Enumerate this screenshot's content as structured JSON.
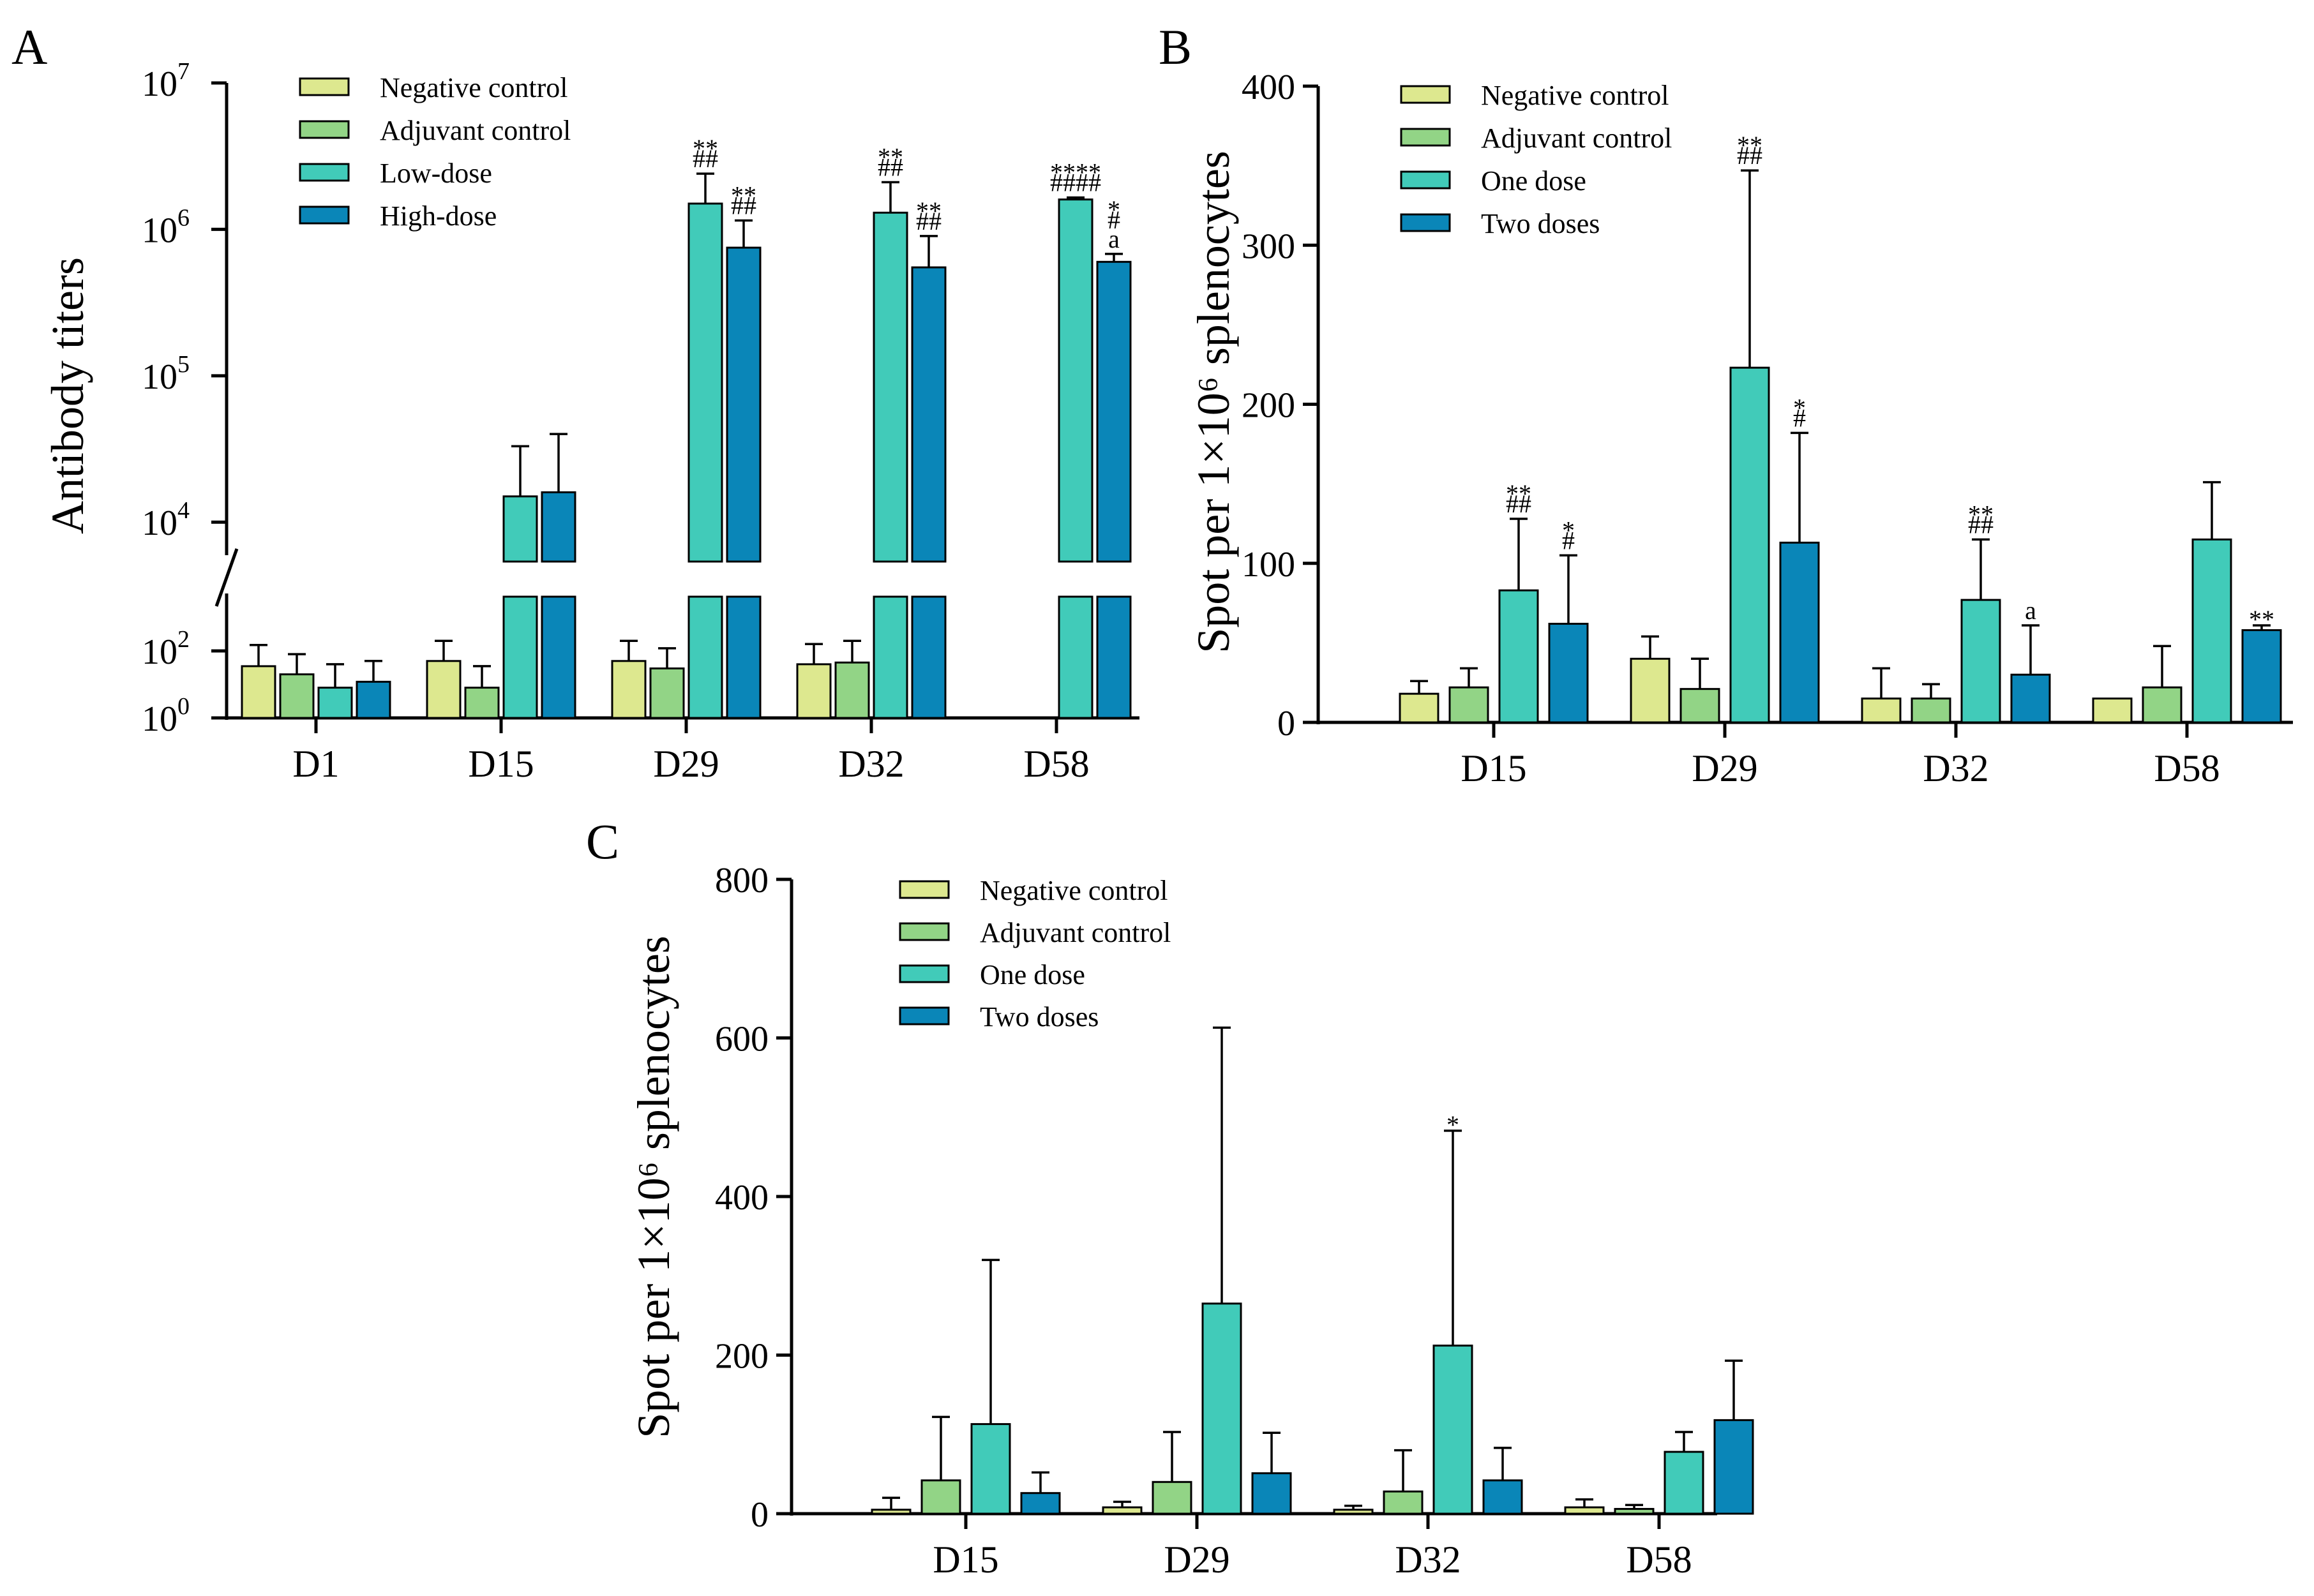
{
  "colors": {
    "negative": "#dde88f",
    "adjuvant": "#92d486",
    "low_one": "#41cbb9",
    "high_two": "#0a86b8"
  },
  "chart_data": [
    {
      "panel": "A",
      "type": "bar",
      "ylabel": "Antibody titers",
      "yscale": "log10, broken axis",
      "yticks": [
        {
          "base": "10",
          "exp": "0"
        },
        {
          "base": "10",
          "exp": "2"
        },
        {
          "base": "10",
          "exp": "4"
        },
        {
          "base": "10",
          "exp": "5"
        },
        {
          "base": "10",
          "exp": "6"
        },
        {
          "base": "10",
          "exp": "7"
        }
      ],
      "ylim": [
        1,
        10000000
      ],
      "categories": [
        "D1",
        "D15",
        "D29",
        "D32",
        "D58"
      ],
      "legend_position": "top-left",
      "series": [
        {
          "name": "Negative control",
          "color_key": "negative",
          "values": [
            35,
            50,
            50,
            40,
            null
          ],
          "err_top": [
            150,
            200,
            200,
            160,
            null
          ]
        },
        {
          "name": "Adjuvant control",
          "color_key": "adjuvant",
          "values": [
            20,
            8,
            30,
            45,
            null
          ],
          "err_top": [
            80,
            35,
            120,
            200,
            null
          ]
        },
        {
          "name": "Low-dose",
          "color_key": "low_one",
          "values": [
            8,
            15000,
            1500000,
            1300000,
            1600000
          ],
          "err_top": [
            40,
            33000,
            2400000,
            2100000,
            1650000
          ]
        },
        {
          "name": "High-dose",
          "color_key": "high_two",
          "values": [
            12,
            16000,
            750000,
            550000,
            600000
          ],
          "err_top": [
            50,
            40000,
            1150000,
            900000,
            680000
          ]
        }
      ],
      "annotations": [
        {
          "series": 2,
          "category": 2,
          "lines": [
            "**",
            "##"
          ]
        },
        {
          "series": 3,
          "category": 2,
          "lines": [
            "**",
            "##"
          ]
        },
        {
          "series": 2,
          "category": 3,
          "lines": [
            "**",
            "##"
          ]
        },
        {
          "series": 3,
          "category": 3,
          "lines": [
            "**",
            "##"
          ]
        },
        {
          "series": 2,
          "category": 4,
          "lines": [
            "****",
            "####"
          ]
        },
        {
          "series": 3,
          "category": 4,
          "lines": [
            "*",
            "#",
            "a"
          ]
        }
      ]
    },
    {
      "panel": "B",
      "type": "bar",
      "ylabel": "Spot per 1×10⁶ splenocytes",
      "ylim": [
        0,
        400
      ],
      "yticks": [
        0,
        100,
        200,
        300,
        400
      ],
      "categories": [
        "D15",
        "D29",
        "D32",
        "D58"
      ],
      "legend_position": "top-left",
      "series": [
        {
          "name": "Negative control",
          "color_key": "negative",
          "values": [
            18,
            40,
            15,
            15
          ],
          "err_top": [
            26,
            54,
            34,
            null
          ]
        },
        {
          "name": "Adjuvant control",
          "color_key": "adjuvant",
          "values": [
            22,
            21,
            15,
            22
          ],
          "err_top": [
            34,
            40,
            24,
            48
          ]
        },
        {
          "name": "One dose",
          "color_key": "low_one",
          "values": [
            83,
            223,
            77,
            115
          ],
          "err_top": [
            128,
            347,
            115,
            151
          ]
        },
        {
          "name": "Two doses",
          "color_key": "high_two",
          "values": [
            62,
            113,
            30,
            58
          ],
          "err_top": [
            105,
            182,
            61,
            61
          ]
        }
      ],
      "annotations": [
        {
          "series": 2,
          "category": 0,
          "lines": [
            "**",
            "##"
          ]
        },
        {
          "series": 3,
          "category": 0,
          "lines": [
            "*",
            "#"
          ]
        },
        {
          "series": 2,
          "category": 1,
          "lines": [
            "**",
            "##"
          ]
        },
        {
          "series": 3,
          "category": 1,
          "lines": [
            "*",
            "#"
          ]
        },
        {
          "series": 2,
          "category": 2,
          "lines": [
            "**",
            "##"
          ]
        },
        {
          "series": 3,
          "category": 2,
          "lines": [
            "a"
          ]
        },
        {
          "series": 3,
          "category": 3,
          "lines": [
            "**"
          ]
        }
      ]
    },
    {
      "panel": "C",
      "type": "bar",
      "ylabel": "Spot per 1×10⁶ splenocytes",
      "ylim": [
        0,
        800
      ],
      "yticks": [
        0,
        200,
        400,
        600,
        800
      ],
      "categories": [
        "D15",
        "D29",
        "D32",
        "D58"
      ],
      "legend_position": "top-left",
      "series": [
        {
          "name": "Negative control",
          "color_key": "negative",
          "values": [
            5,
            8,
            5,
            8
          ],
          "err_top": [
            20,
            15,
            10,
            18
          ]
        },
        {
          "name": "Adjuvant control",
          "color_key": "adjuvant",
          "values": [
            42,
            40,
            28,
            6
          ],
          "err_top": [
            122,
            103,
            80,
            11
          ]
        },
        {
          "name": "One dose",
          "color_key": "low_one",
          "values": [
            113,
            265,
            212,
            78
          ],
          "err_top": [
            320,
            613,
            483,
            103
          ]
        },
        {
          "name": "Two doses",
          "color_key": "high_two",
          "values": [
            26,
            51,
            42,
            118
          ],
          "err_top": [
            52,
            102,
            83,
            193
          ]
        }
      ],
      "annotations": [
        {
          "series": 2,
          "category": 2,
          "lines": [
            "*"
          ]
        }
      ]
    }
  ]
}
